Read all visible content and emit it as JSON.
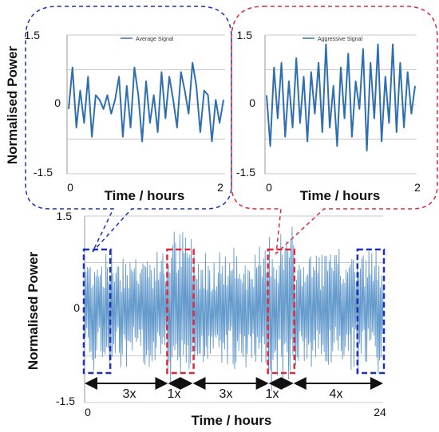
{
  "chart_data": [
    {
      "type": "line",
      "ylabel": "Normalised Power",
      "xlabel": "Time / hours",
      "x_ticks": [
        "0",
        "2"
      ],
      "y_ticks": [
        "1.5",
        "0",
        "-1.5"
      ],
      "xlim": [
        0,
        2
      ],
      "ylim": [
        -1.5,
        1.5
      ],
      "grid": true,
      "legend_position": "top-right",
      "series": [
        {
          "name": "Average Signal",
          "x": [
            0,
            0.05,
            0.1,
            0.15,
            0.2,
            0.25,
            0.3,
            0.35,
            0.4,
            0.45,
            0.5,
            0.55,
            0.6,
            0.65,
            0.7,
            0.75,
            0.8,
            0.85,
            0.9,
            0.95,
            1.0,
            1.05,
            1.1,
            1.15,
            1.2,
            1.25,
            1.3,
            1.35,
            1.4,
            1.45,
            1.5,
            1.55,
            1.6,
            1.65,
            1.7,
            1.75,
            1.8,
            1.85,
            1.9,
            1.95,
            2.0
          ],
          "y": [
            -0.1,
            0.8,
            -0.5,
            0.3,
            -0.4,
            0.6,
            -0.7,
            0.2,
            0.1,
            -0.1,
            0.2,
            -0.2,
            0.1,
            0.6,
            -0.7,
            0.4,
            -0.5,
            0.8,
            0.2,
            -0.8,
            0.5,
            -0.4,
            0.2,
            -0.6,
            0.7,
            -0.3,
            0.6,
            0.1,
            -0.5,
            0.7,
            0.3,
            -0.2,
            0.9,
            0.4,
            -0.6,
            0.3,
            0.2,
            -0.8,
            0.1,
            -0.4,
            0.1
          ]
        }
      ]
    },
    {
      "type": "line",
      "xlabel": "Time / hours",
      "x_ticks": [
        "0",
        "2"
      ],
      "y_ticks": [
        "1.5",
        "0",
        "-1.5"
      ],
      "xlim": [
        0,
        2
      ],
      "ylim": [
        -1.5,
        1.5
      ],
      "grid": true,
      "legend_position": "top-right",
      "series": [
        {
          "name": "Aggressive Signal",
          "x": [
            0,
            0.05,
            0.1,
            0.15,
            0.2,
            0.25,
            0.3,
            0.35,
            0.4,
            0.45,
            0.5,
            0.55,
            0.6,
            0.65,
            0.7,
            0.75,
            0.8,
            0.85,
            0.9,
            0.95,
            1.0,
            1.05,
            1.1,
            1.15,
            1.2,
            1.25,
            1.3,
            1.35,
            1.4,
            1.45,
            1.5,
            1.55,
            1.6,
            1.65,
            1.7,
            1.75,
            1.8,
            1.85,
            1.9,
            1.95,
            2.0
          ],
          "y": [
            0.2,
            -0.9,
            0.8,
            -0.3,
            0.9,
            -0.7,
            0.5,
            -0.5,
            1.0,
            -0.4,
            0.6,
            -0.8,
            0.7,
            -0.2,
            0.9,
            -0.6,
            1.3,
            -0.5,
            0.4,
            -0.9,
            0.8,
            -0.3,
            1.1,
            -0.7,
            0.5,
            -0.1,
            1.2,
            -1.0,
            0.9,
            -0.3,
            1.3,
            -0.8,
            0.6,
            -0.4,
            1.3,
            -0.6,
            0.9,
            -0.5,
            0.7,
            -0.2,
            0.4
          ]
        }
      ]
    },
    {
      "type": "line",
      "ylabel": "Normalised Power",
      "xlabel": "Time / hours",
      "x_ticks": [
        "0",
        "24"
      ],
      "y_ticks": [
        "1.5",
        "0",
        "-1.5"
      ],
      "xlim": [
        0,
        24
      ],
      "ylim": [
        -1.5,
        1.5
      ],
      "grid": true,
      "highlight_windows": [
        {
          "style": "average",
          "color": "#1f2fb5",
          "start_hours": 0,
          "end_hours": 2
        },
        {
          "style": "aggressive",
          "color": "#e0283c",
          "start_hours": 6.7,
          "end_hours": 8.7
        },
        {
          "style": "aggressive",
          "color": "#e0283c",
          "start_hours": 14.8,
          "end_hours": 16.8
        },
        {
          "style": "average",
          "color": "#1f2fb5",
          "start_hours": 22,
          "end_hours": 24
        }
      ],
      "segment_annotations": [
        "3x",
        "1x",
        "3x",
        "1x",
        "4x"
      ]
    }
  ],
  "colors": {
    "line": "#2f6fb0",
    "dense_line": "#5b95c8",
    "average_box": "#1f2fb5",
    "aggressive_box": "#e0283c",
    "grid": "#c8c8c8"
  }
}
